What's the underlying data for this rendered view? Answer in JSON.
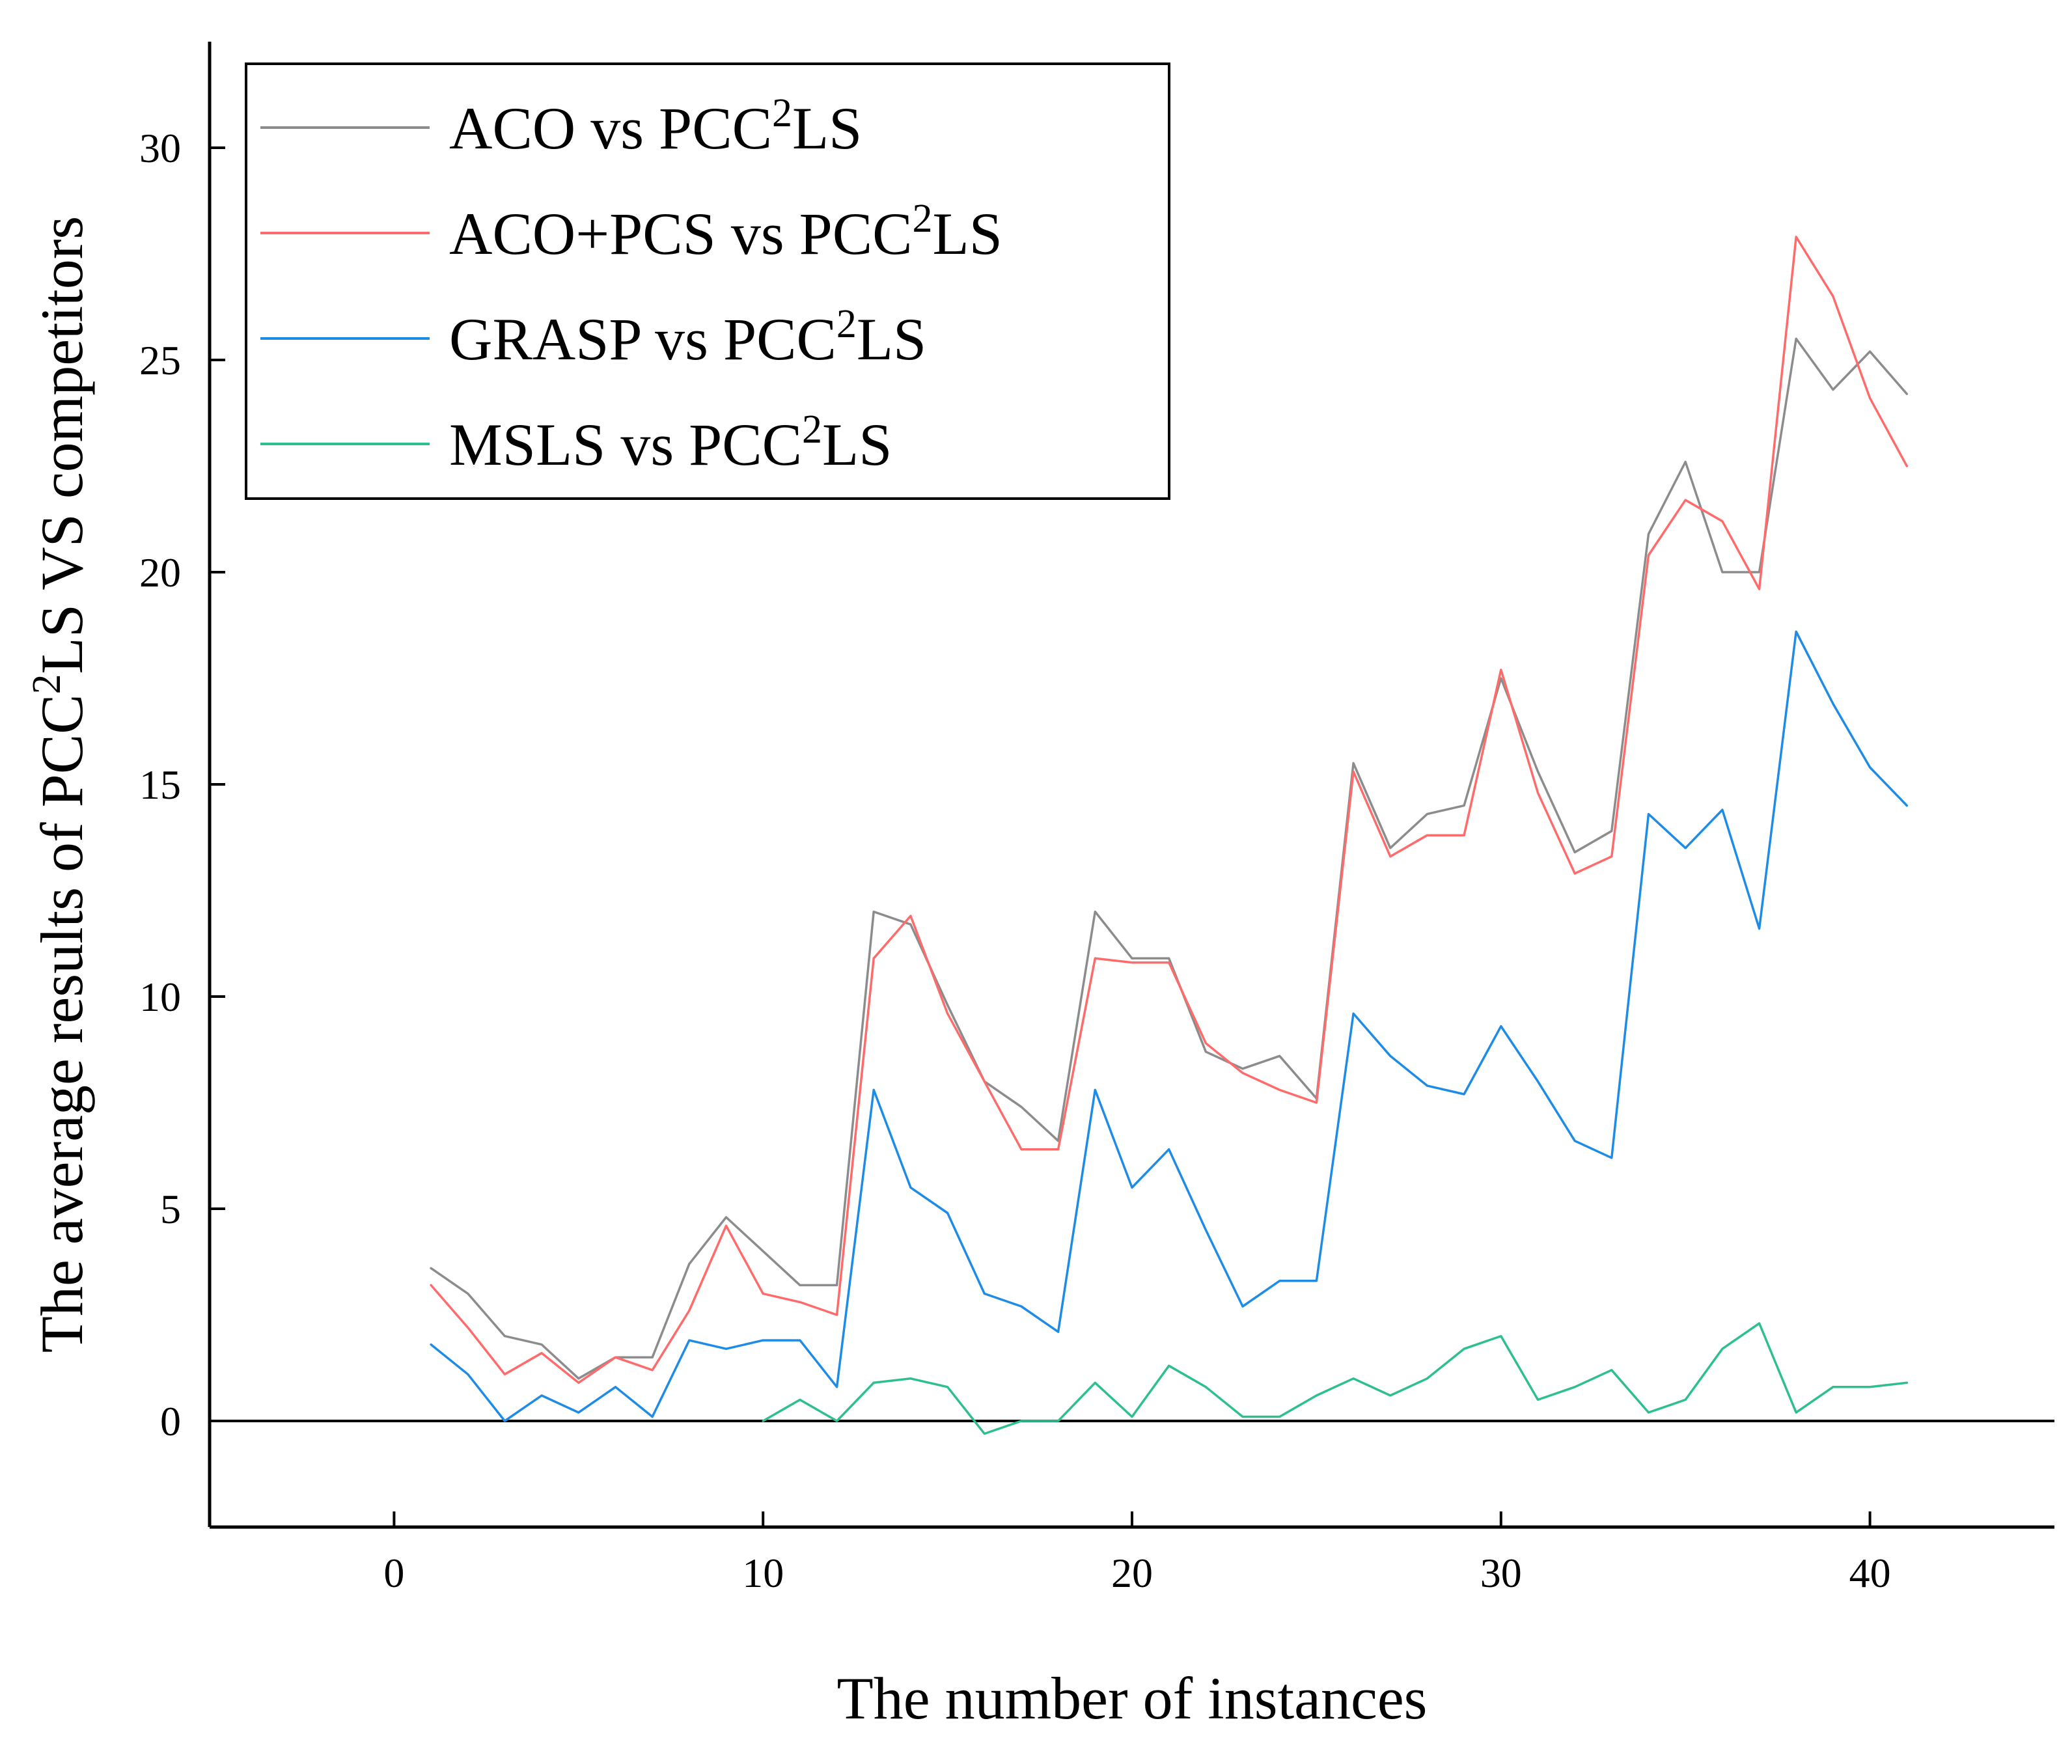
{
  "chart_data": {
    "type": "line",
    "xlabel": "The number of instances",
    "ylabel": {
      "prefix": "The average results of PCC",
      "superscript": "2",
      "suffix": "LS VS competitors"
    },
    "xlim": [
      -5,
      45
    ],
    "ylim": [
      -2.5,
      32.5
    ],
    "xticks": [
      0,
      10,
      20,
      30,
      40
    ],
    "yticks": [
      0,
      5,
      10,
      15,
      20,
      25,
      30
    ],
    "zero_line": true,
    "legend_position": "top-left",
    "series": [
      {
        "name": "ACO vs PCC2LS",
        "label_prefix": "ACO vs PCC",
        "label_sup": "2",
        "label_suffix": "LS",
        "color": "#8c8c8c",
        "x": [
          1,
          2,
          3,
          4,
          5,
          6,
          7,
          8,
          9,
          10,
          11,
          12,
          13,
          14,
          15,
          16,
          17,
          18,
          19,
          20,
          21,
          22,
          23,
          24,
          25,
          26,
          27,
          28,
          29,
          30,
          31,
          32,
          33,
          34,
          35,
          36,
          37,
          38,
          39,
          40,
          41
        ],
        "y": [
          3.6,
          3.0,
          2.0,
          1.8,
          1.0,
          1.5,
          1.5,
          3.7,
          4.8,
          4.0,
          3.2,
          3.2,
          12.0,
          11.7,
          9.8,
          8.0,
          7.4,
          6.6,
          12.0,
          10.9,
          10.9,
          8.7,
          8.3,
          8.6,
          7.6,
          15.5,
          13.5,
          14.3,
          14.5,
          17.5,
          15.3,
          13.4,
          13.9,
          20.9,
          22.6,
          20.0,
          20.0,
          25.5,
          24.3,
          25.2,
          24.2
        ]
      },
      {
        "name": "ACO+PCS vs PCC2LS",
        "label_prefix": "ACO+PCS vs PCC",
        "label_sup": "2",
        "label_suffix": "LS",
        "color": "#ff6b6b",
        "x": [
          1,
          2,
          3,
          4,
          5,
          6,
          7,
          8,
          9,
          10,
          11,
          12,
          13,
          14,
          15,
          16,
          17,
          18,
          19,
          20,
          21,
          22,
          23,
          24,
          25,
          26,
          27,
          28,
          29,
          30,
          31,
          32,
          33,
          34,
          35,
          36,
          37,
          38,
          39,
          40,
          41
        ],
        "y": [
          3.2,
          2.2,
          1.1,
          1.6,
          0.9,
          1.5,
          1.2,
          2.6,
          4.6,
          3.0,
          2.8,
          2.5,
          10.9,
          11.9,
          9.6,
          8.0,
          6.4,
          6.4,
          10.9,
          10.8,
          10.8,
          8.9,
          8.2,
          7.8,
          7.5,
          15.3,
          13.3,
          13.8,
          13.8,
          17.7,
          14.8,
          12.9,
          13.3,
          20.4,
          21.7,
          21.2,
          19.6,
          27.9,
          26.5,
          24.1,
          22.5
        ]
      },
      {
        "name": "GRASP vs PCC2LS",
        "label_prefix": "GRASP vs PCC",
        "label_sup": "2",
        "label_suffix": "LS",
        "color": "#1e8ce6",
        "x": [
          1,
          2,
          3,
          4,
          5,
          6,
          7,
          8,
          9,
          10,
          11,
          12,
          13,
          14,
          15,
          16,
          17,
          18,
          19,
          20,
          21,
          22,
          23,
          24,
          25,
          26,
          27,
          28,
          29,
          30,
          31,
          32,
          33,
          34,
          35,
          36,
          37,
          38,
          39,
          40,
          41
        ],
        "y": [
          1.8,
          1.1,
          0.0,
          0.6,
          0.2,
          0.8,
          0.1,
          1.9,
          1.7,
          1.9,
          1.9,
          0.8,
          7.8,
          5.5,
          4.9,
          3.0,
          2.7,
          2.1,
          7.8,
          5.5,
          6.4,
          4.5,
          2.7,
          3.3,
          3.3,
          9.6,
          8.6,
          7.9,
          7.7,
          9.3,
          8.0,
          6.6,
          6.2,
          14.3,
          13.5,
          14.4,
          11.6,
          18.6,
          16.9,
          15.4,
          14.5
        ]
      },
      {
        "name": "MSLS vs PCC2LS",
        "label_prefix": "MSLS vs PCC",
        "label_sup": "2",
        "label_suffix": "LS",
        "color": "#2ebf8f",
        "x": [
          10,
          11,
          12,
          13,
          14,
          15,
          16,
          17,
          18,
          19,
          20,
          21,
          22,
          23,
          24,
          25,
          26,
          27,
          28,
          29,
          30,
          31,
          32,
          33,
          34,
          35,
          36,
          37,
          38,
          39,
          40,
          41
        ],
        "y": [
          0.0,
          0.5,
          0.0,
          0.9,
          1.0,
          0.8,
          -0.3,
          0.0,
          0.0,
          0.9,
          0.1,
          1.3,
          0.8,
          0.1,
          0.1,
          0.6,
          1.0,
          0.6,
          1.0,
          1.7,
          2.0,
          0.5,
          0.8,
          1.2,
          0.2,
          0.5,
          1.7,
          2.3,
          0.2,
          0.8,
          0.8,
          0.9
        ]
      }
    ]
  }
}
